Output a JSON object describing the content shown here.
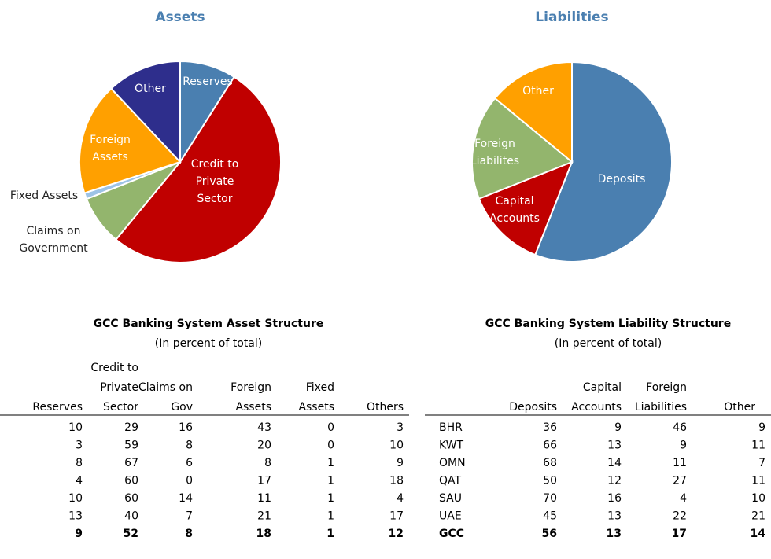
{
  "chart_data": [
    {
      "type": "pie",
      "title": "Assets",
      "labels": [
        [
          "Reserves"
        ],
        [
          "Credit to",
          "Private",
          "Sector"
        ],
        [
          "Claims on",
          "Government"
        ],
        [
          "Fixed Assets"
        ],
        [
          "Foreign",
          "Assets"
        ],
        [
          "Other"
        ]
      ],
      "values": [
        9,
        52,
        8,
        1,
        18,
        12
      ],
      "colors": [
        "#4a7fb0",
        "#c00000",
        "#93b56d",
        "#9dc3e6",
        "#ffa000",
        "#2e2e8c"
      ]
    },
    {
      "type": "pie",
      "title": "Liabilities",
      "labels": [
        [
          "Deposits"
        ],
        [
          "Capital",
          "Accounts"
        ],
        [
          "Foreign",
          "Liabilites"
        ],
        [
          "Other"
        ]
      ],
      "values": [
        56,
        13,
        17,
        14
      ],
      "colors": [
        "#4a7fb0",
        "#c00000",
        "#93b56d",
        "#ffa000"
      ]
    }
  ],
  "tables": [
    {
      "title": "GCC Banking System Asset Structure",
      "subtitle": "(In percent of total)",
      "columns": [
        [
          "Reserves"
        ],
        [
          "Credit to",
          "Private",
          "Sector"
        ],
        [
          "Claims on",
          "Gov"
        ],
        [
          "Foreign",
          "Assets"
        ],
        [
          "Fixed",
          "Assets"
        ],
        [
          "Others"
        ]
      ],
      "rows": [
        {
          "values": [
            10,
            29,
            16,
            43,
            0,
            3
          ]
        },
        {
          "values": [
            3,
            59,
            8,
            20,
            0,
            10
          ]
        },
        {
          "values": [
            8,
            67,
            6,
            8,
            1,
            9
          ]
        },
        {
          "values": [
            4,
            60,
            0,
            17,
            1,
            18
          ]
        },
        {
          "values": [
            10,
            60,
            14,
            11,
            1,
            4
          ]
        },
        {
          "values": [
            13,
            40,
            7,
            21,
            1,
            17
          ]
        },
        {
          "values": [
            9,
            52,
            8,
            18,
            1,
            12
          ]
        }
      ]
    },
    {
      "title": "GCC Banking System Liability Structure",
      "subtitle": "(In percent of total)",
      "columns": [
        [
          "Deposits"
        ],
        [
          "Capital",
          "Accounts"
        ],
        [
          "Foreign",
          "Liabilities"
        ],
        [
          "Other"
        ]
      ],
      "rows": [
        {
          "label": "BHR",
          "values": [
            36,
            9,
            46,
            9
          ]
        },
        {
          "label": "KWT",
          "values": [
            66,
            13,
            9,
            11
          ]
        },
        {
          "label": "OMN",
          "values": [
            68,
            14,
            11,
            7
          ]
        },
        {
          "label": "QAT",
          "values": [
            50,
            12,
            27,
            11
          ]
        },
        {
          "label": "SAU",
          "values": [
            70,
            16,
            4,
            10
          ]
        },
        {
          "label": "UAE",
          "values": [
            45,
            13,
            22,
            21
          ]
        },
        {
          "label": "GCC",
          "values": [
            56,
            13,
            17,
            14
          ]
        }
      ]
    }
  ]
}
